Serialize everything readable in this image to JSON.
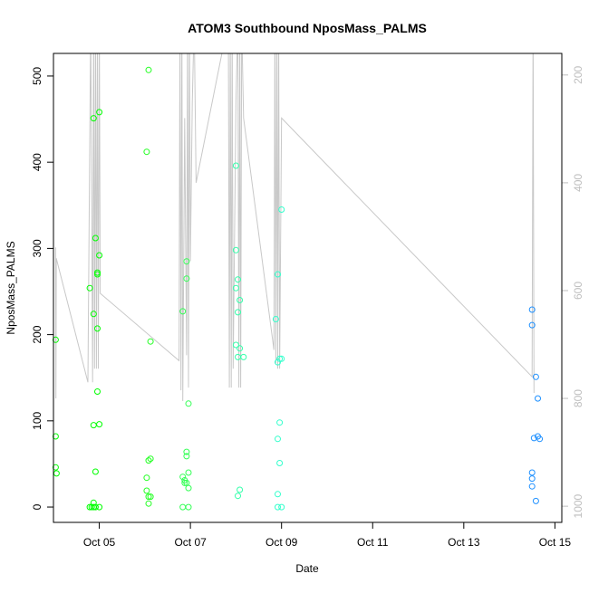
{
  "chart_data": {
    "type": "scatter",
    "title": "ATOM3 Southbound NposMass_PALMS",
    "xlabel": "Date",
    "ylabel": "NposMass_PALMS",
    "xlim": [
      "2017-10-03 23:52",
      "2017-10-15 03:38"
    ],
    "ylim": [
      -17.8,
      526.2
    ],
    "yticks": [
      0,
      100,
      200,
      300,
      400,
      500
    ],
    "xticks": [
      {
        "label": "Oct 05",
        "date": "2017-10-05"
      },
      {
        "label": "Oct 07",
        "date": "2017-10-07"
      },
      {
        "label": "Oct 09",
        "date": "2017-10-09"
      },
      {
        "label": "Oct 11",
        "date": "2017-10-11"
      },
      {
        "label": "Oct 13",
        "date": "2017-10-13"
      },
      {
        "label": "Oct 15",
        "date": "2017-10-15"
      }
    ],
    "y2": {
      "ylim": [
        160,
        1030
      ],
      "reversed": true,
      "ticks": [
        200,
        400,
        600,
        800,
        1000
      ],
      "color": "#bebebe"
    },
    "series": [
      {
        "color": "#00ff00",
        "points": [
          [
            "2017-10-04 01:00",
            194
          ],
          [
            "2017-10-04 01:00",
            82
          ],
          [
            "2017-10-04 01:00",
            46
          ],
          [
            "2017-10-04 01:30",
            39
          ],
          [
            "2017-10-04 19:00",
            254
          ],
          [
            "2017-10-04 19:00",
            0
          ],
          [
            "2017-10-04 20:00",
            0
          ],
          [
            "2017-10-04 21:00",
            0
          ],
          [
            "2017-10-04 21:00",
            451
          ],
          [
            "2017-10-04 21:00",
            224
          ],
          [
            "2017-10-04 21:00",
            95
          ],
          [
            "2017-10-04 21:00",
            5
          ],
          [
            "2017-10-04 22:00",
            312
          ],
          [
            "2017-10-04 22:00",
            41
          ],
          [
            "2017-10-04 22:00",
            0
          ],
          [
            "2017-10-04 23:00",
            270
          ],
          [
            "2017-10-04 23:00",
            272
          ],
          [
            "2017-10-04 23:00",
            134
          ],
          [
            "2017-10-04 23:00",
            207
          ],
          [
            "2017-10-05 00:00",
            458
          ],
          [
            "2017-10-05 00:00",
            292
          ],
          [
            "2017-10-05 00:00",
            96
          ],
          [
            "2017-10-05 00:00",
            0
          ]
        ]
      },
      {
        "color": "#22ff22",
        "points": [
          [
            "2017-10-06 01:00",
            412
          ],
          [
            "2017-10-06 02:00",
            507
          ],
          [
            "2017-10-06 01:00",
            34
          ],
          [
            "2017-10-06 01:00",
            19
          ],
          [
            "2017-10-06 02:00",
            54
          ],
          [
            "2017-10-06 03:00",
            56
          ],
          [
            "2017-10-06 02:00",
            12
          ],
          [
            "2017-10-06 03:00",
            12
          ],
          [
            "2017-10-06 02:00",
            4
          ],
          [
            "2017-10-06 03:00",
            192
          ]
        ]
      },
      {
        "color": "#33ff55",
        "points": [
          [
            "2017-10-06 20:00",
            227
          ],
          [
            "2017-10-06 20:00",
            35
          ],
          [
            "2017-10-06 21:00",
            31
          ],
          [
            "2017-10-06 21:00",
            28
          ],
          [
            "2017-10-06 20:00",
            0
          ],
          [
            "2017-10-06 22:00",
            265
          ],
          [
            "2017-10-06 22:00",
            285
          ],
          [
            "2017-10-06 22:00",
            64
          ],
          [
            "2017-10-06 22:00",
            59
          ],
          [
            "2017-10-06 22:00",
            28
          ],
          [
            "2017-10-06 23:00",
            40
          ],
          [
            "2017-10-06 23:00",
            22
          ],
          [
            "2017-10-06 23:00",
            0
          ],
          [
            "2017-10-06 23:00",
            120
          ]
        ]
      },
      {
        "color": "#33ffaa",
        "points": [
          [
            "2017-10-08 00:00",
            396
          ],
          [
            "2017-10-08 00:00",
            298
          ],
          [
            "2017-10-08 00:00",
            254
          ],
          [
            "2017-10-08 01:00",
            226
          ],
          [
            "2017-10-08 00:00",
            188
          ],
          [
            "2017-10-08 01:00",
            264
          ],
          [
            "2017-10-08 02:00",
            240
          ],
          [
            "2017-10-08 01:00",
            174
          ],
          [
            "2017-10-08 02:00",
            184
          ],
          [
            "2017-10-08 04:00",
            174
          ],
          [
            "2017-10-08 01:00",
            13
          ],
          [
            "2017-10-08 02:00",
            20
          ]
        ]
      },
      {
        "color": "#33ffcc",
        "points": [
          [
            "2017-10-08 21:00",
            218
          ],
          [
            "2017-10-08 22:00",
            270
          ],
          [
            "2017-10-09 00:00",
            345
          ],
          [
            "2017-10-08 23:00",
            172
          ],
          [
            "2017-10-08 22:00",
            168
          ],
          [
            "2017-10-09 00:00",
            172
          ],
          [
            "2017-10-08 23:00",
            98
          ],
          [
            "2017-10-08 22:00",
            79
          ],
          [
            "2017-10-08 23:00",
            51
          ],
          [
            "2017-10-08 22:00",
            15
          ],
          [
            "2017-10-08 22:00",
            0
          ],
          [
            "2017-10-09 00:00",
            0
          ]
        ]
      },
      {
        "color": "#1e90ff",
        "points": [
          [
            "2017-10-14 12:00",
            229
          ],
          [
            "2017-10-14 12:00",
            211
          ],
          [
            "2017-10-14 14:00",
            151
          ],
          [
            "2017-10-14 15:00",
            126
          ],
          [
            "2017-10-14 13:00",
            80
          ],
          [
            "2017-10-14 15:00",
            82
          ],
          [
            "2017-10-14 16:00",
            79
          ],
          [
            "2017-10-14 12:00",
            40
          ],
          [
            "2017-10-14 12:00",
            33
          ],
          [
            "2017-10-14 12:00",
            24
          ],
          [
            "2017-10-14 14:00",
            7
          ]
        ]
      }
    ],
    "secondary_line": {
      "color": "#c8c8c8",
      "axis": "y2",
      "points": [
        [
          "2017-10-04 01:00",
          520
        ],
        [
          "2017-10-04 01:10",
          800
        ],
        [
          "2017-10-04 01:20",
          540
        ],
        [
          "2017-10-04 18:00",
          770
        ],
        [
          "2017-10-04 19:30",
          100
        ],
        [
          "2017-10-04 20:30",
          770
        ],
        [
          "2017-10-04 21:00",
          100
        ],
        [
          "2017-10-04 21:30",
          745
        ],
        [
          "2017-10-04 22:00",
          100
        ],
        [
          "2017-10-04 22:30",
          745
        ],
        [
          "2017-10-04 23:00",
          100
        ],
        [
          "2017-10-04 23:30",
          745
        ],
        [
          "2017-10-05 00:00",
          100
        ],
        [
          "2017-10-05 00:30",
          605
        ],
        [
          "2017-10-06 18:00",
          730
        ],
        [
          "2017-10-06 18:30",
          100
        ],
        [
          "2017-10-06 19:00",
          785
        ],
        [
          "2017-10-06 19:30",
          100
        ],
        [
          "2017-10-06 20:00",
          805
        ],
        [
          "2017-10-06 21:00",
          280
        ],
        [
          "2017-10-06 22:00",
          720
        ],
        [
          "2017-10-06 22:30",
          100
        ],
        [
          "2017-10-06 23:00",
          780
        ],
        [
          "2017-10-06 23:30",
          100
        ],
        [
          "2017-10-07 00:00",
          545
        ],
        [
          "2017-10-07 01:00",
          250
        ],
        [
          "2017-10-07 02:00",
          100
        ],
        [
          "2017-10-07 03:00",
          400
        ],
        [
          "2017-10-07 20:00",
          100
        ],
        [
          "2017-10-07 20:30",
          780
        ],
        [
          "2017-10-07 21:00",
          100
        ],
        [
          "2017-10-07 21:30",
          780
        ],
        [
          "2017-10-07 22:00",
          100
        ],
        [
          "2017-10-07 22:30",
          745
        ],
        [
          "2017-10-08 00:00",
          250
        ],
        [
          "2017-10-08 01:00",
          100
        ],
        [
          "2017-10-08 01:30",
          780
        ],
        [
          "2017-10-08 02:00",
          100
        ],
        [
          "2017-10-08 02:30",
          780
        ],
        [
          "2017-10-08 03:00",
          100
        ],
        [
          "2017-10-08 04:00",
          280
        ],
        [
          "2017-10-08 20:00",
          710
        ],
        [
          "2017-10-08 20:30",
          100
        ],
        [
          "2017-10-08 21:00",
          735
        ],
        [
          "2017-10-08 21:30",
          100
        ],
        [
          "2017-10-08 22:00",
          745
        ],
        [
          "2017-10-08 22:30",
          100
        ],
        [
          "2017-10-08 23:00",
          745
        ],
        [
          "2017-10-09 00:00",
          280
        ],
        [
          "2017-10-14 12:00",
          760
        ],
        [
          "2017-10-14 12:30",
          100
        ],
        [
          "2017-10-14 13:00",
          790
        ]
      ]
    }
  }
}
